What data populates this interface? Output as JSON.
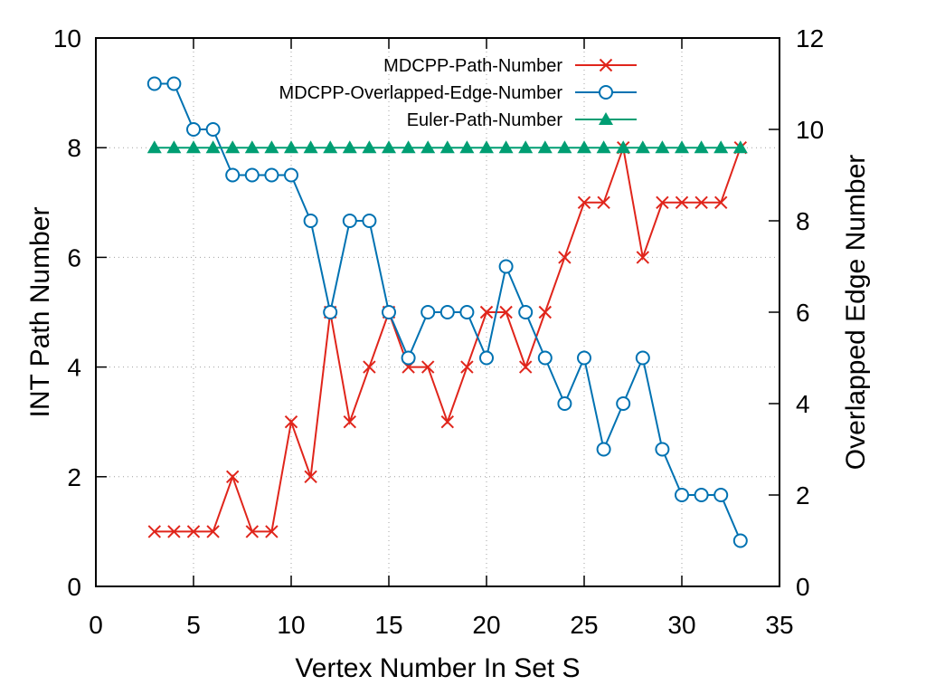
{
  "chart_data": {
    "type": "line",
    "xlabel": "Vertex Number In Set S",
    "ylabel": "INT Path Number",
    "y2label": "Overlapped Edge Number",
    "xlim": [
      0,
      35
    ],
    "ylim": [
      0,
      10
    ],
    "y2lim": [
      0,
      12
    ],
    "xticks": [
      "0",
      "5",
      "10",
      "15",
      "20",
      "25",
      "30",
      "35"
    ],
    "yticks": [
      "0",
      "2",
      "4",
      "6",
      "8",
      "10"
    ],
    "y2ticks": [
      "0",
      "2",
      "4",
      "6",
      "8",
      "10",
      "12"
    ],
    "grid": true,
    "legend_position": "top-right",
    "x": [
      3,
      4,
      5,
      6,
      7,
      8,
      9,
      10,
      11,
      12,
      13,
      14,
      15,
      16,
      17,
      18,
      19,
      20,
      21,
      22,
      23,
      24,
      25,
      26,
      27,
      28,
      29,
      30,
      31,
      32,
      33
    ],
    "series": [
      {
        "name": "MDCPP-Path-Number",
        "axis": "left",
        "marker": "x",
        "color": "#e0251b",
        "values": [
          1,
          1,
          1,
          1,
          2,
          1,
          1,
          3,
          2,
          5,
          3,
          4,
          5,
          4,
          4,
          3,
          4,
          5,
          5,
          4,
          5,
          6,
          7,
          7,
          8,
          6,
          7,
          7,
          7,
          7,
          8
        ]
      },
      {
        "name": "MDCPP-Overlapped-Edge-Number",
        "axis": "right",
        "marker": "circle",
        "color": "#0072b2",
        "values": [
          11,
          11,
          10,
          10,
          9,
          9,
          9,
          9,
          8,
          6,
          8,
          8,
          6,
          5,
          6,
          6,
          6,
          5,
          7,
          6,
          5,
          4,
          5,
          3,
          4,
          5,
          3,
          2,
          2,
          2,
          1
        ]
      },
      {
        "name": "Euler-Path-Number",
        "axis": "left",
        "marker": "triangle",
        "color": "#009e73",
        "values": [
          8,
          8,
          8,
          8,
          8,
          8,
          8,
          8,
          8,
          8,
          8,
          8,
          8,
          8,
          8,
          8,
          8,
          8,
          8,
          8,
          8,
          8,
          8,
          8,
          8,
          8,
          8,
          8,
          8,
          8,
          8
        ]
      }
    ]
  }
}
